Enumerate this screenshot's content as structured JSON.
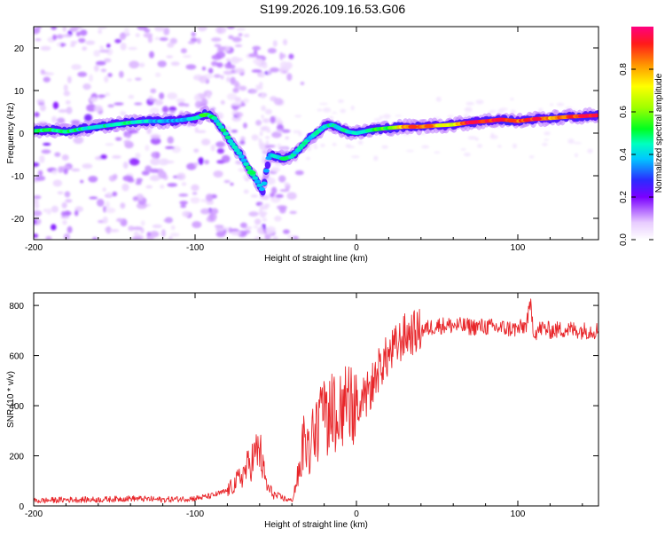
{
  "title": "S199.2026.109.16.53.G06",
  "chart_data": [
    {
      "type": "heatmap",
      "xlabel": "Height of straight line (km)",
      "ylabel": "Frequency (Hz)",
      "xlim": [
        -200,
        150
      ],
      "ylim": [
        -25,
        25
      ],
      "xticks": [
        -200,
        -100,
        0,
        100
      ],
      "xtick_labels": [
        "-200",
        "-100",
        "0",
        "100"
      ],
      "yticks": [
        -20,
        -10,
        0,
        10,
        20
      ],
      "ytick_labels": [
        "-20",
        "-10",
        "0",
        "10",
        "20"
      ],
      "colorbar": {
        "label": "Normalized spectral amplitude",
        "range": [
          0,
          1
        ],
        "ticks": [
          0.0,
          0.2,
          0.4,
          0.6,
          0.8
        ],
        "tick_labels": [
          "0.0",
          "0.2",
          "0.4",
          "0.6",
          "0.8"
        ]
      },
      "ridge": [
        {
          "x": -200,
          "f": 0.5,
          "a": 0.45
        },
        {
          "x": -190,
          "f": 0.8,
          "a": 0.5
        },
        {
          "x": -180,
          "f": 0.3,
          "a": 0.5
        },
        {
          "x": -170,
          "f": 1.0,
          "a": 0.45
        },
        {
          "x": -160,
          "f": 1.5,
          "a": 0.45
        },
        {
          "x": -150,
          "f": 2.0,
          "a": 0.45
        },
        {
          "x": -140,
          "f": 2.5,
          "a": 0.45
        },
        {
          "x": -130,
          "f": 2.8,
          "a": 0.42
        },
        {
          "x": -120,
          "f": 2.8,
          "a": 0.35
        },
        {
          "x": -110,
          "f": 3.0,
          "a": 0.38
        },
        {
          "x": -100,
          "f": 3.5,
          "a": 0.4
        },
        {
          "x": -93,
          "f": 4.5,
          "a": 0.5
        },
        {
          "x": -88,
          "f": 3.5,
          "a": 0.45
        },
        {
          "x": -82,
          "f": 0.5,
          "a": 0.45
        },
        {
          "x": -78,
          "f": -2.0,
          "a": 0.45
        },
        {
          "x": -72,
          "f": -5.0,
          "a": 0.4
        },
        {
          "x": -68,
          "f": -7.5,
          "a": 0.45
        },
        {
          "x": -62,
          "f": -11.0,
          "a": 0.4
        },
        {
          "x": -58,
          "f": -13.5,
          "a": 0.35
        },
        {
          "x": -54,
          "f": -5.0,
          "a": 0.38
        },
        {
          "x": -50,
          "f": -5.5,
          "a": 0.4
        },
        {
          "x": -45,
          "f": -6.0,
          "a": 0.45
        },
        {
          "x": -40,
          "f": -5.5,
          "a": 0.45
        },
        {
          "x": -35,
          "f": -3.5,
          "a": 0.42
        },
        {
          "x": -30,
          "f": -1.5,
          "a": 0.42
        },
        {
          "x": -25,
          "f": 0.0,
          "a": 0.42
        },
        {
          "x": -20,
          "f": 1.5,
          "a": 0.42
        },
        {
          "x": -15,
          "f": 2.0,
          "a": 0.45
        },
        {
          "x": -10,
          "f": 1.0,
          "a": 0.45
        },
        {
          "x": -5,
          "f": 0.3,
          "a": 0.45
        },
        {
          "x": 0,
          "f": 0.0,
          "a": 0.45
        },
        {
          "x": 10,
          "f": 0.8,
          "a": 0.5
        },
        {
          "x": 20,
          "f": 1.2,
          "a": 0.55
        },
        {
          "x": 30,
          "f": 1.5,
          "a": 0.8
        },
        {
          "x": 40,
          "f": 1.5,
          "a": 0.85
        },
        {
          "x": 50,
          "f": 1.8,
          "a": 0.75
        },
        {
          "x": 60,
          "f": 2.0,
          "a": 0.7
        },
        {
          "x": 70,
          "f": 2.5,
          "a": 0.95
        },
        {
          "x": 80,
          "f": 2.8,
          "a": 0.9
        },
        {
          "x": 90,
          "f": 3.2,
          "a": 0.92
        },
        {
          "x": 100,
          "f": 2.8,
          "a": 0.85
        },
        {
          "x": 110,
          "f": 3.3,
          "a": 0.92
        },
        {
          "x": 120,
          "f": 3.5,
          "a": 0.8
        },
        {
          "x": 130,
          "f": 3.8,
          "a": 0.85
        },
        {
          "x": 140,
          "f": 4.0,
          "a": 0.92
        },
        {
          "x": 150,
          "f": 4.2,
          "a": 0.92
        }
      ]
    },
    {
      "type": "line",
      "xlabel": "Height of straight line (km)",
      "ylabel": "SNR (10 * v/v)",
      "xlim": [
        -200,
        150
      ],
      "ylim": [
        0,
        850
      ],
      "xticks": [
        -200,
        -100,
        0,
        100
      ],
      "xtick_labels": [
        "-200",
        "-100",
        "0",
        "100"
      ],
      "yticks": [
        0,
        200,
        400,
        600,
        800
      ],
      "ytick_labels": [
        "0",
        "200",
        "400",
        "600",
        "800"
      ],
      "series": [
        {
          "name": "SNR",
          "color": "#e8262a",
          "x": [
            -200,
            -180,
            -160,
            -140,
            -120,
            -100,
            -90,
            -80,
            -75,
            -70,
            -65,
            -60,
            -58,
            -55,
            -50,
            -45,
            -40,
            -35,
            -32,
            -30,
            -28,
            -25,
            -20,
            -15,
            -10,
            -5,
            0,
            5,
            10,
            15,
            20,
            25,
            30,
            40,
            50,
            60,
            70,
            80,
            90,
            100,
            105,
            108,
            110,
            115,
            120,
            130,
            140,
            150
          ],
          "values": [
            20,
            25,
            25,
            30,
            25,
            30,
            40,
            60,
            90,
            130,
            180,
            230,
            150,
            70,
            40,
            30,
            20,
            150,
            300,
            200,
            260,
            300,
            340,
            360,
            390,
            380,
            370,
            420,
            490,
            560,
            600,
            640,
            680,
            700,
            720,
            720,
            715,
            715,
            710,
            705,
            720,
            800,
            690,
            710,
            700,
            705,
            700,
            700
          ]
        }
      ]
    }
  ]
}
